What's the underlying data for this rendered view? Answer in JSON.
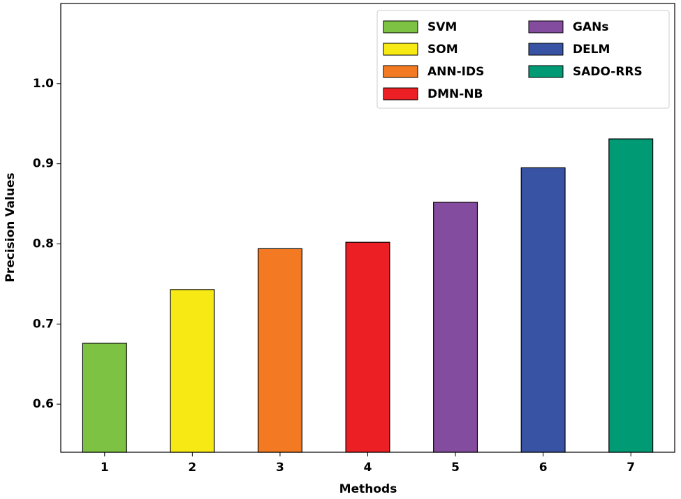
{
  "chart_data": {
    "type": "bar",
    "x_label": "Methods",
    "y_label": "Precision Values",
    "categories": [
      "1",
      "2",
      "3",
      "4",
      "5",
      "6",
      "7"
    ],
    "values": [
      0.676,
      0.743,
      0.794,
      0.802,
      0.852,
      0.895,
      0.931
    ],
    "colors": [
      "#7dc242",
      "#f7ea14",
      "#f37a22",
      "#ec2024",
      "#834c9e",
      "#3953a4",
      "#009a74"
    ],
    "legend_labels": [
      "SVM",
      "SOM",
      "ANN-IDS",
      "DMN-NB",
      "GANs",
      "DELM",
      "SADO-RRS"
    ],
    "ylim": [
      0.54,
      1.1
    ],
    "yticks": [
      {
        "value": 0.6,
        "label": "0.6"
      },
      {
        "value": 0.7,
        "label": "0.7"
      },
      {
        "value": 0.8,
        "label": "0.8"
      },
      {
        "value": 0.9,
        "label": "0.9"
      },
      {
        "value": 1.0,
        "label": "1.0"
      }
    ],
    "grid": false,
    "legend_position": "upper right"
  }
}
